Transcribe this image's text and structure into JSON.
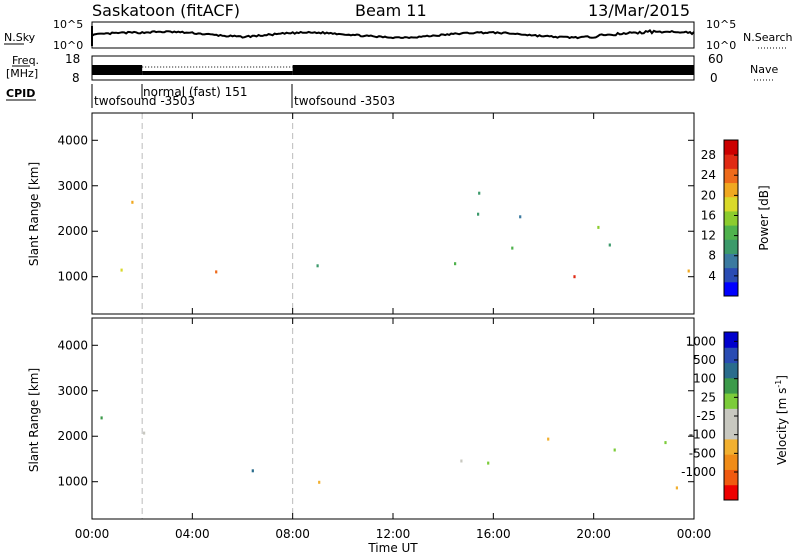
{
  "header": {
    "site": "Saskatoon (fitACF)",
    "beam": "Beam 11",
    "date": "13/Mar/2015"
  },
  "strips": {
    "nsky_label": "N.Sky",
    "nsearch_label": "N.Search",
    "freq_label_1": "Freq.",
    "freq_label_2": "[MHz]",
    "nave_label": "Nave",
    "cpid_label": "CPID",
    "nsky_ticks": [
      "10^5",
      "10^0"
    ],
    "nsearch_ticks": [
      "10^5",
      "10^0"
    ],
    "freq_ticks": [
      "18",
      "8"
    ],
    "nave_ticks": [
      "60",
      "0"
    ],
    "cpid_segments": [
      {
        "label": "twofsound -3503",
        "start_hour": 0
      },
      {
        "label": "normal (fast) 151",
        "start_hour": 2
      },
      {
        "label": "twofsound -3503",
        "start_hour": 8
      }
    ]
  },
  "colors": {
    "power": [
      "#0000ff",
      "#2a4cb3",
      "#3b7aa0",
      "#3c9a6b",
      "#4fb24d",
      "#8ccc2e",
      "#d9d92a",
      "#f0a820",
      "#ee6a1a",
      "#e02a14",
      "#cc0000"
    ],
    "velocity": [
      "#ee0000",
      "#f05a10",
      "#f08c18",
      "#f2b030",
      "#c8c8c0",
      "#c8c8c0",
      "#7ccc3a",
      "#3c9a4a",
      "#2a6c8c",
      "#2a4cb3",
      "#0000cc"
    ]
  },
  "chart_data": [
    {
      "type": "heatmap",
      "panel": "power",
      "xlabel": "",
      "ylabel": "Slant Range [km]",
      "x_ticks_hours": [
        0,
        4,
        8,
        12,
        16,
        20,
        24
      ],
      "x_tick_labels": [
        "",
        "",
        "",
        "",
        "",
        "",
        ""
      ],
      "xlim_hours": [
        0,
        24
      ],
      "ylim_km": [
        180,
        4600
      ],
      "y_ticks": [
        1000,
        2000,
        3000,
        4000
      ],
      "colorbar": {
        "label": "Power [dB]",
        "ticks": [
          4,
          8,
          12,
          16,
          20,
          24,
          28
        ],
        "range": [
          0,
          31
        ]
      },
      "scatter_regions": [
        {
          "t": [
            0.0,
            1.9
          ],
          "r": [
            1000,
            1800
          ],
          "v": 14
        },
        {
          "t": [
            0.0,
            1.9
          ],
          "r": [
            2000,
            2700
          ],
          "v": 20
        },
        {
          "t": [
            0.0,
            1.9
          ],
          "r": [
            2800,
            3100
          ],
          "v": 12
        },
        {
          "t": [
            1.9,
            3.0
          ],
          "r": [
            1700,
            2700
          ],
          "v": 10
        },
        {
          "t": [
            3.0,
            4.8
          ],
          "r": [
            1000,
            1400
          ],
          "v": 28
        },
        {
          "t": [
            3.5,
            6.5
          ],
          "r": [
            1100,
            2000
          ],
          "v": 22
        },
        {
          "t": [
            5.0,
            7.0
          ],
          "r": [
            1900,
            2300
          ],
          "v": 16
        },
        {
          "t": [
            4.5,
            6.5
          ],
          "r": [
            2200,
            2600
          ],
          "v": 9
        },
        {
          "t": [
            7.0,
            9.5
          ],
          "r": [
            1000,
            2400
          ],
          "v": 8
        },
        {
          "t": [
            10.5,
            13.8
          ],
          "r": [
            2400,
            2600
          ],
          "v": 10
        },
        {
          "t": [
            11.5,
            14.2
          ],
          "r": [
            300,
            600
          ],
          "v": 22
        },
        {
          "t": [
            13.2,
            14.6
          ],
          "r": [
            350,
            500
          ],
          "v": 29
        },
        {
          "t": [
            14.0,
            15.2
          ],
          "r": [
            1200,
            2400
          ],
          "v": 10
        },
        {
          "t": [
            15.0,
            24.0
          ],
          "r": [
            850,
            1150
          ],
          "v": 29
        },
        {
          "t": [
            15.0,
            24.0
          ],
          "r": [
            1150,
            1500
          ],
          "v": 18
        },
        {
          "t": [
            15.0,
            24.0
          ],
          "r": [
            1500,
            2300
          ],
          "v": 12
        },
        {
          "t": [
            15.0,
            24.0
          ],
          "r": [
            2300,
            3200
          ],
          "v": 8
        }
      ]
    },
    {
      "type": "heatmap",
      "panel": "velocity",
      "xlabel": "Time UT",
      "ylabel": "Slant Range [km]",
      "x_ticks_hours": [
        0,
        4,
        8,
        12,
        16,
        20,
        24
      ],
      "x_tick_labels": [
        "00:00",
        "04:00",
        "08:00",
        "12:00",
        "16:00",
        "20:00",
        "00:00"
      ],
      "xlim_hours": [
        0,
        24
      ],
      "ylim_km": [
        180,
        4600
      ],
      "y_ticks": [
        1000,
        2000,
        3000,
        4000
      ],
      "colorbar": {
        "label": "Velocity [m s^-1]",
        "ticks": [
          "-1000",
          "-500",
          "-100",
          "-25",
          "25",
          "100",
          "500",
          "1000"
        ]
      },
      "scatter_regions": [
        {
          "t": [
            0.0,
            1.9
          ],
          "r": [
            1800,
            2700
          ],
          "v": 200
        },
        {
          "t": [
            0.0,
            1.9
          ],
          "r": [
            2800,
            3100
          ],
          "v": 300
        },
        {
          "t": [
            1.9,
            3.5
          ],
          "r": [
            1500,
            2500
          ],
          "v": 0
        },
        {
          "t": [
            3.5,
            6.8
          ],
          "r": [
            1200,
            2200
          ],
          "v": 400
        },
        {
          "t": [
            4.0,
            6.0
          ],
          "r": [
            1000,
            1200
          ],
          "v": -300
        },
        {
          "t": [
            7.0,
            9.5
          ],
          "r": [
            1000,
            2400
          ],
          "v": 0
        },
        {
          "t": [
            10.5,
            13.8
          ],
          "r": [
            2400,
            2600
          ],
          "v": 0
        },
        {
          "t": [
            11.5,
            14.2
          ],
          "r": [
            300,
            700
          ],
          "v": -150
        },
        {
          "t": [
            14.0,
            15.2
          ],
          "r": [
            1200,
            2500
          ],
          "v": 60
        },
        {
          "t": [
            15.0,
            24.0
          ],
          "r": [
            850,
            2300
          ],
          "v": 0
        },
        {
          "t": [
            21.5,
            24.0
          ],
          "r": [
            2300,
            2800
          ],
          "v": -120
        }
      ]
    }
  ]
}
